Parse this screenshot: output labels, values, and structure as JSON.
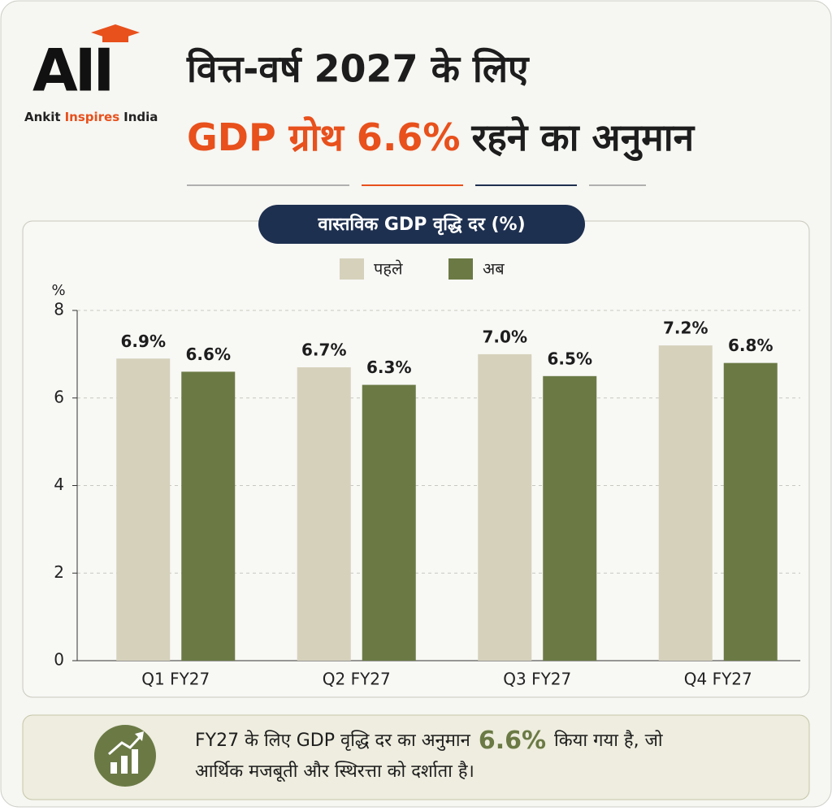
{
  "header": {
    "logo": "AII",
    "brand": [
      "Ankit",
      "Inspires",
      "India"
    ],
    "title_line1": "वित्त-वर्ष 2027 के लिए",
    "title_line2_highlight": "GDP ग्रोथ 6.6%",
    "title_line2_rest": "रहने का अनुमान"
  },
  "chart_data": {
    "type": "bar",
    "title": "वास्तविक GDP वृद्धि दर (%)",
    "ylabel": "%",
    "categories": [
      "Q1 FY27",
      "Q2 FY27",
      "Q3 FY27",
      "Q4 FY27"
    ],
    "series": [
      {
        "name": "पहले",
        "color": "#d5d1bb",
        "values": [
          6.9,
          6.7,
          7.0,
          7.2
        ],
        "value_labels": [
          "6.9%",
          "6.7%",
          "7.0%",
          "7.2%"
        ]
      },
      {
        "name": "अब",
        "color": "#6b7a45",
        "values": [
          6.6,
          6.3,
          6.5,
          6.8
        ],
        "value_labels": [
          "6.6%",
          "6.3%",
          "6.5%",
          "6.8%"
        ]
      }
    ],
    "ylim": [
      0,
      8
    ],
    "yticks": [
      0,
      2,
      4,
      6,
      8
    ],
    "grid": true
  },
  "footer": {
    "line1_start": "FY27 के लिए GDP वृद्धि दर का अनुमान",
    "line1_highlight": "6.6%",
    "line1_end": "किया गया है, जो",
    "line2": "आर्थिक मजबूती और स्थिरत्ता को दर्शाता है।"
  }
}
